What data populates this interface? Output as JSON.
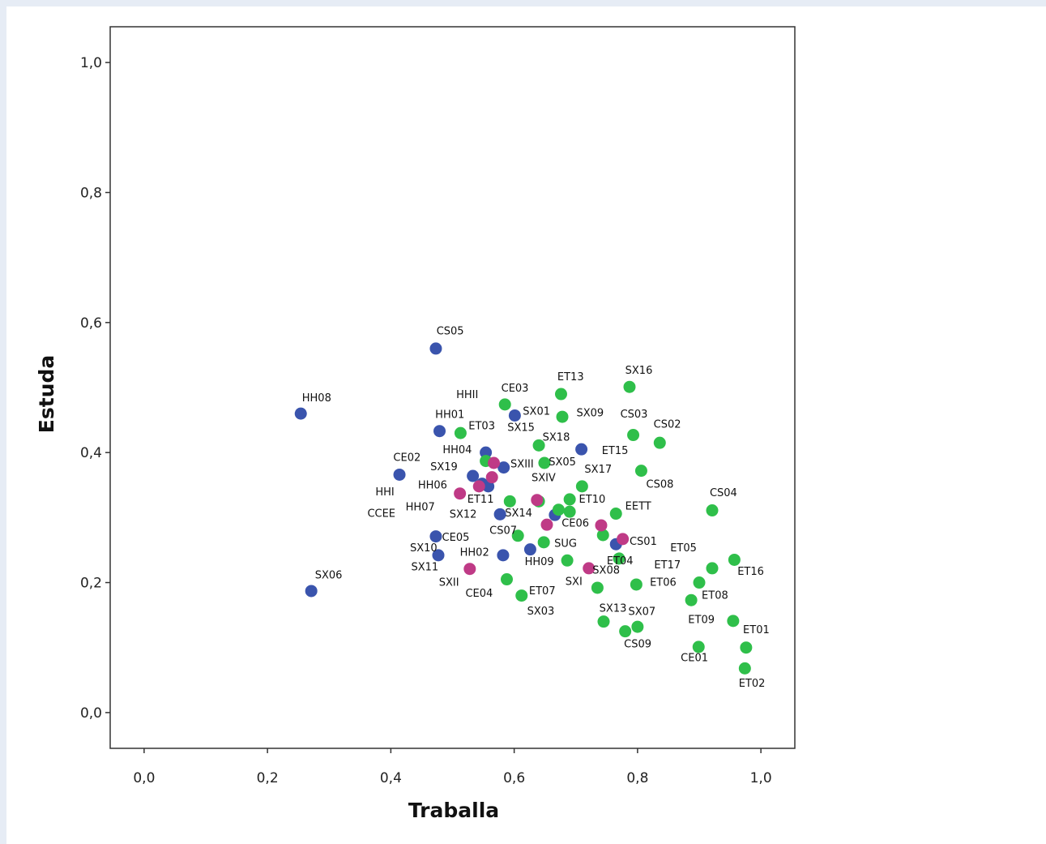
{
  "chart_data": {
    "type": "scatter",
    "xlabel": "Traballa",
    "ylabel": "Estuda",
    "xlim": [
      -0.055,
      1.055
    ],
    "ylim": [
      -0.055,
      1.055
    ],
    "x_ticks": [
      "0,0",
      "0,2",
      "0,4",
      "0,6",
      "0,8",
      "1,0"
    ],
    "y_ticks": [
      "0,0",
      "0,2",
      "0,4",
      "0,6",
      "0,8",
      "1,0"
    ],
    "x_tick_values": [
      0,
      0.2,
      0.4,
      0.6,
      0.8,
      1.0
    ],
    "y_tick_values": [
      0,
      0.2,
      0.4,
      0.6,
      0.8,
      1.0
    ],
    "grid": false,
    "colors": {
      "blue": "#3a54ad",
      "green": "#2fbf4a",
      "magenta": "#bf3a86"
    },
    "points": [
      {
        "x": 0.473,
        "y": 0.56,
        "c": "blue"
      },
      {
        "x": 0.254,
        "y": 0.46,
        "c": "blue"
      },
      {
        "x": 0.479,
        "y": 0.433,
        "c": "blue"
      },
      {
        "x": 0.601,
        "y": 0.457,
        "c": "blue"
      },
      {
        "x": 0.554,
        "y": 0.4,
        "c": "blue"
      },
      {
        "x": 0.414,
        "y": 0.366,
        "c": "blue"
      },
      {
        "x": 0.533,
        "y": 0.364,
        "c": "blue"
      },
      {
        "x": 0.583,
        "y": 0.377,
        "c": "blue"
      },
      {
        "x": 0.709,
        "y": 0.405,
        "c": "blue"
      },
      {
        "x": 0.548,
        "y": 0.352,
        "c": "blue"
      },
      {
        "x": 0.558,
        "y": 0.348,
        "c": "blue"
      },
      {
        "x": 0.577,
        "y": 0.305,
        "c": "blue"
      },
      {
        "x": 0.666,
        "y": 0.304,
        "c": "blue"
      },
      {
        "x": 0.473,
        "y": 0.271,
        "c": "blue"
      },
      {
        "x": 0.477,
        "y": 0.242,
        "c": "blue"
      },
      {
        "x": 0.582,
        "y": 0.242,
        "c": "blue"
      },
      {
        "x": 0.626,
        "y": 0.251,
        "c": "blue"
      },
      {
        "x": 0.765,
        "y": 0.259,
        "c": "blue"
      },
      {
        "x": 0.271,
        "y": 0.187,
        "c": "blue"
      },
      {
        "x": 0.585,
        "y": 0.474,
        "c": "green"
      },
      {
        "x": 0.676,
        "y": 0.49,
        "c": "green"
      },
      {
        "x": 0.787,
        "y": 0.501,
        "c": "green"
      },
      {
        "x": 0.678,
        "y": 0.455,
        "c": "green"
      },
      {
        "x": 0.513,
        "y": 0.43,
        "c": "green"
      },
      {
        "x": 0.64,
        "y": 0.411,
        "c": "green"
      },
      {
        "x": 0.793,
        "y": 0.427,
        "c": "green"
      },
      {
        "x": 0.836,
        "y": 0.415,
        "c": "green"
      },
      {
        "x": 0.554,
        "y": 0.387,
        "c": "green"
      },
      {
        "x": 0.649,
        "y": 0.384,
        "c": "green"
      },
      {
        "x": 0.806,
        "y": 0.372,
        "c": "green"
      },
      {
        "x": 0.71,
        "y": 0.348,
        "c": "green"
      },
      {
        "x": 0.593,
        "y": 0.325,
        "c": "green"
      },
      {
        "x": 0.64,
        "y": 0.325,
        "c": "green"
      },
      {
        "x": 0.69,
        "y": 0.328,
        "c": "green"
      },
      {
        "x": 0.672,
        "y": 0.312,
        "c": "green"
      },
      {
        "x": 0.69,
        "y": 0.309,
        "c": "green"
      },
      {
        "x": 0.765,
        "y": 0.306,
        "c": "green"
      },
      {
        "x": 0.921,
        "y": 0.311,
        "c": "green"
      },
      {
        "x": 0.606,
        "y": 0.272,
        "c": "green"
      },
      {
        "x": 0.648,
        "y": 0.262,
        "c": "green"
      },
      {
        "x": 0.744,
        "y": 0.273,
        "c": "green"
      },
      {
        "x": 0.77,
        "y": 0.237,
        "c": "green"
      },
      {
        "x": 0.686,
        "y": 0.234,
        "c": "green"
      },
      {
        "x": 0.957,
        "y": 0.235,
        "c": "green"
      },
      {
        "x": 0.921,
        "y": 0.222,
        "c": "green"
      },
      {
        "x": 0.588,
        "y": 0.205,
        "c": "green"
      },
      {
        "x": 0.798,
        "y": 0.197,
        "c": "green"
      },
      {
        "x": 0.735,
        "y": 0.192,
        "c": "green"
      },
      {
        "x": 0.9,
        "y": 0.2,
        "c": "green"
      },
      {
        "x": 0.612,
        "y": 0.18,
        "c": "green"
      },
      {
        "x": 0.887,
        "y": 0.173,
        "c": "green"
      },
      {
        "x": 0.745,
        "y": 0.14,
        "c": "green"
      },
      {
        "x": 0.8,
        "y": 0.132,
        "c": "green"
      },
      {
        "x": 0.78,
        "y": 0.125,
        "c": "green"
      },
      {
        "x": 0.955,
        "y": 0.141,
        "c": "green"
      },
      {
        "x": 0.899,
        "y": 0.101,
        "c": "green"
      },
      {
        "x": 0.976,
        "y": 0.1,
        "c": "green"
      },
      {
        "x": 0.974,
        "y": 0.068,
        "c": "green"
      },
      {
        "x": 0.567,
        "y": 0.384,
        "c": "magenta"
      },
      {
        "x": 0.564,
        "y": 0.362,
        "c": "magenta"
      },
      {
        "x": 0.543,
        "y": 0.348,
        "c": "magenta"
      },
      {
        "x": 0.512,
        "y": 0.337,
        "c": "magenta"
      },
      {
        "x": 0.637,
        "y": 0.327,
        "c": "magenta"
      },
      {
        "x": 0.653,
        "y": 0.289,
        "c": "magenta"
      },
      {
        "x": 0.741,
        "y": 0.288,
        "c": "magenta"
      },
      {
        "x": 0.776,
        "y": 0.267,
        "c": "magenta"
      },
      {
        "x": 0.528,
        "y": 0.221,
        "c": "magenta"
      },
      {
        "x": 0.721,
        "y": 0.222,
        "c": "magenta"
      }
    ],
    "labels": [
      {
        "text": "CS05",
        "x": 0.474,
        "y": 0.582
      },
      {
        "text": "HH08",
        "x": 0.256,
        "y": 0.479
      },
      {
        "text": "HHII",
        "x": 0.506,
        "y": 0.484
      },
      {
        "text": "CE03",
        "x": 0.579,
        "y": 0.494
      },
      {
        "text": "ET13",
        "x": 0.67,
        "y": 0.511
      },
      {
        "text": "SX16",
        "x": 0.78,
        "y": 0.521
      },
      {
        "text": "HH01",
        "x": 0.472,
        "y": 0.453
      },
      {
        "text": "SX01",
        "x": 0.614,
        "y": 0.458
      },
      {
        "text": "SX09",
        "x": 0.701,
        "y": 0.456
      },
      {
        "text": "CS03",
        "x": 0.772,
        "y": 0.454
      },
      {
        "text": "ET03",
        "x": 0.526,
        "y": 0.436
      },
      {
        "text": "SX15",
        "x": 0.589,
        "y": 0.433
      },
      {
        "text": "CS02",
        "x": 0.826,
        "y": 0.438
      },
      {
        "text": "SX18",
        "x": 0.646,
        "y": 0.418
      },
      {
        "text": "HH04",
        "x": 0.484,
        "y": 0.399
      },
      {
        "text": "ET15",
        "x": 0.742,
        "y": 0.398
      },
      {
        "text": "CE02",
        "x": 0.404,
        "y": 0.387
      },
      {
        "text": "SX19",
        "x": 0.464,
        "y": 0.373
      },
      {
        "text": "SXIII",
        "x": 0.594,
        "y": 0.377
      },
      {
        "text": "SX05",
        "x": 0.656,
        "y": 0.38
      },
      {
        "text": "SX17",
        "x": 0.714,
        "y": 0.369
      },
      {
        "text": "SXIV",
        "x": 0.628,
        "y": 0.356
      },
      {
        "text": "HH06",
        "x": 0.444,
        "y": 0.345
      },
      {
        "text": "CS08",
        "x": 0.814,
        "y": 0.346
      },
      {
        "text": "HHI",
        "x": 0.375,
        "y": 0.334
      },
      {
        "text": "ET11",
        "x": 0.524,
        "y": 0.323
      },
      {
        "text": "ET10",
        "x": 0.705,
        "y": 0.323
      },
      {
        "text": "CS04",
        "x": 0.917,
        "y": 0.333
      },
      {
        "text": "HH07",
        "x": 0.424,
        "y": 0.311
      },
      {
        "text": "EETT",
        "x": 0.78,
        "y": 0.312
      },
      {
        "text": "CCEE",
        "x": 0.362,
        "y": 0.301
      },
      {
        "text": "SX12",
        "x": 0.495,
        "y": 0.3
      },
      {
        "text": "SX14",
        "x": 0.585,
        "y": 0.302
      },
      {
        "text": "CE06",
        "x": 0.677,
        "y": 0.286
      },
      {
        "text": "CS07",
        "x": 0.56,
        "y": 0.275
      },
      {
        "text": "CE05",
        "x": 0.483,
        "y": 0.264
      },
      {
        "text": "SUG",
        "x": 0.665,
        "y": 0.255
      },
      {
        "text": "CS01",
        "x": 0.787,
        "y": 0.258
      },
      {
        "text": "SX10",
        "x": 0.431,
        "y": 0.248
      },
      {
        "text": "ET05",
        "x": 0.853,
        "y": 0.248
      },
      {
        "text": "HH02",
        "x": 0.512,
        "y": 0.241
      },
      {
        "text": "HH09",
        "x": 0.617,
        "y": 0.227
      },
      {
        "text": "ET04",
        "x": 0.75,
        "y": 0.228
      },
      {
        "text": "ET17",
        "x": 0.827,
        "y": 0.222
      },
      {
        "text": "SX11",
        "x": 0.433,
        "y": 0.219
      },
      {
        "text": "SX08",
        "x": 0.727,
        "y": 0.214
      },
      {
        "text": "ET16",
        "x": 0.962,
        "y": 0.212
      },
      {
        "text": "SXII",
        "x": 0.478,
        "y": 0.195
      },
      {
        "text": "SXI",
        "x": 0.683,
        "y": 0.196
      },
      {
        "text": "ET06",
        "x": 0.82,
        "y": 0.195
      },
      {
        "text": "CE04",
        "x": 0.521,
        "y": 0.178
      },
      {
        "text": "ET07",
        "x": 0.624,
        "y": 0.182
      },
      {
        "text": "ET08",
        "x": 0.904,
        "y": 0.175
      },
      {
        "text": "SX13",
        "x": 0.738,
        "y": 0.155
      },
      {
        "text": "SX03",
        "x": 0.621,
        "y": 0.151
      },
      {
        "text": "SX07",
        "x": 0.785,
        "y": 0.15
      },
      {
        "text": "ET09",
        "x": 0.882,
        "y": 0.138
      },
      {
        "text": "ET01",
        "x": 0.971,
        "y": 0.122
      },
      {
        "text": "CS09",
        "x": 0.778,
        "y": 0.1
      },
      {
        "text": "CE01",
        "x": 0.87,
        "y": 0.079
      },
      {
        "text": "ET02",
        "x": 0.964,
        "y": 0.04
      },
      {
        "text": "SX06",
        "x": 0.277,
        "y": 0.206
      }
    ]
  }
}
